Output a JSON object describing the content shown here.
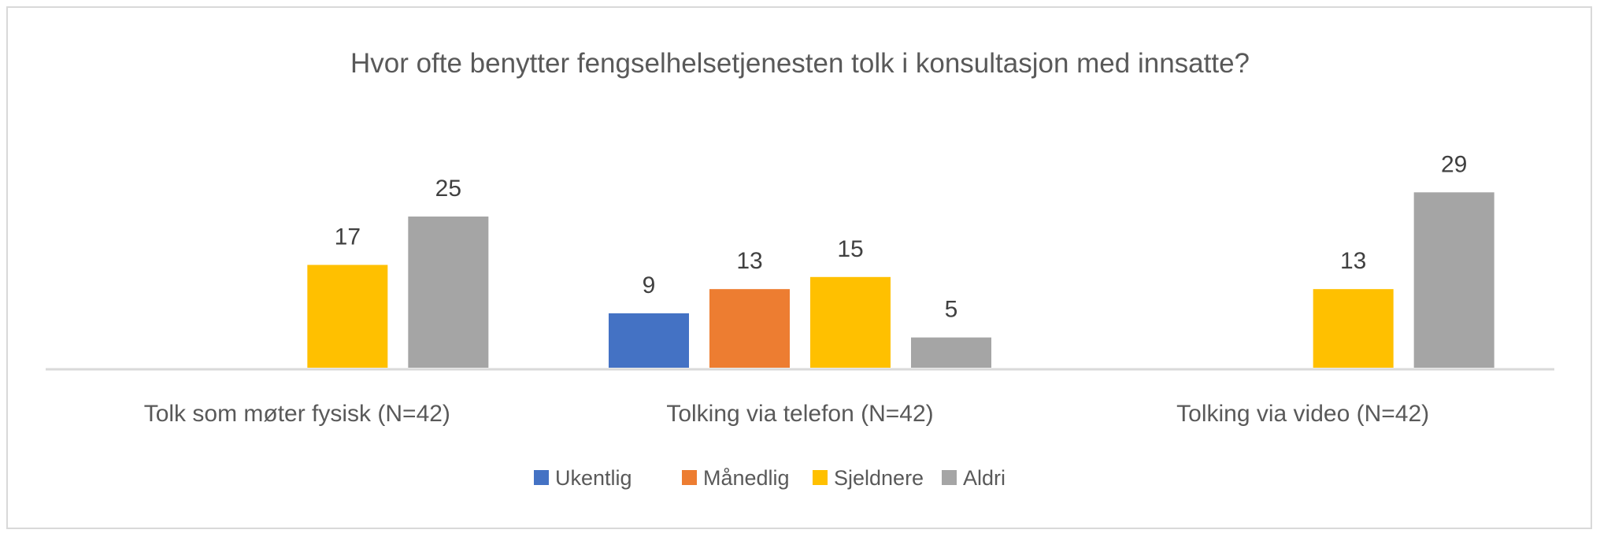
{
  "chart_data": {
    "type": "bar",
    "title": "Hvor ofte benytter fengselhelsetjenesten tolk i konsultasjon med innsatte?",
    "categories": [
      "Tolk som møter fysisk (N=42)",
      "Tolking via telefon (N=42)",
      "Tolking via video (N=42)"
    ],
    "series": [
      {
        "name": "Ukentlig",
        "color": "#4472C4",
        "values": [
          null,
          9,
          null
        ]
      },
      {
        "name": "Månedlig",
        "color": "#ED7D31",
        "values": [
          null,
          13,
          null
        ]
      },
      {
        "name": "Sjeldnere",
        "color": "#FFC000",
        "values": [
          17,
          15,
          13
        ]
      },
      {
        "name": "Aldri",
        "color": "#A5A5A5",
        "values": [
          25,
          5,
          29
        ]
      }
    ],
    "ylim": [
      0,
      33
    ],
    "grid": false,
    "legend": "bottom",
    "data_labels": true
  }
}
